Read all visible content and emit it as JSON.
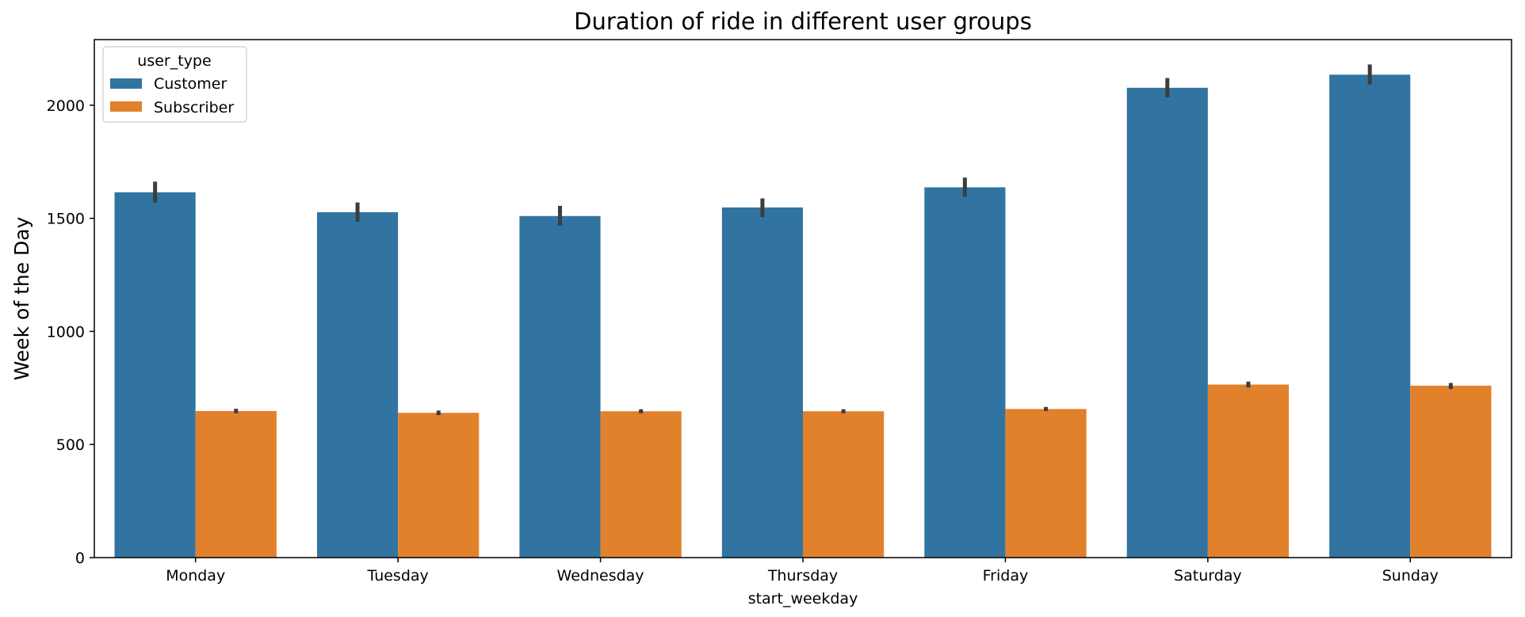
{
  "chart_data": {
    "type": "bar",
    "title": "Duration of ride in different user groups",
    "xlabel": "start_weekday",
    "ylabel": "Week of the Day",
    "categories": [
      "Monday",
      "Tuesday",
      "Wednesday",
      "Thursday",
      "Friday",
      "Saturday",
      "Sunday"
    ],
    "series": [
      {
        "name": "Customer",
        "color": "#3274a1",
        "values": [
          1615,
          1527,
          1510,
          1548,
          1637,
          2077,
          2135
        ],
        "error_low": [
          1570,
          1485,
          1468,
          1505,
          1595,
          2035,
          2092
        ],
        "error_high": [
          1662,
          1570,
          1555,
          1588,
          1680,
          2120,
          2180
        ]
      },
      {
        "name": "Subscriber",
        "color": "#e1812c",
        "values": [
          648,
          640,
          647,
          647,
          657,
          765,
          760
        ],
        "error_low": [
          638,
          630,
          638,
          638,
          648,
          752,
          745
        ],
        "error_high": [
          658,
          650,
          656,
          656,
          666,
          778,
          772
        ]
      }
    ],
    "yticks": [
      0,
      500,
      1000,
      1500,
      2000
    ],
    "ylim": [
      0,
      2290
    ],
    "grid": false,
    "legend": {
      "title": "user_type",
      "placement": "top-left"
    }
  }
}
